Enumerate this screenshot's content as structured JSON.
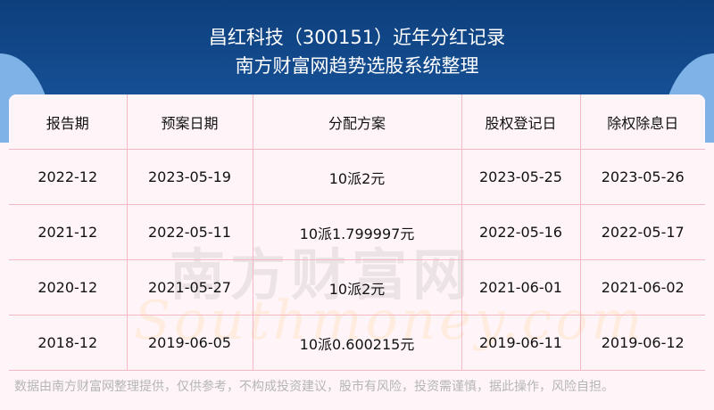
{
  "header": {
    "title": "昌红科技（300151）近年分红记录",
    "subtitle": "南方财富网趋势选股系统整理"
  },
  "table": {
    "columns": [
      "报告期",
      "预案日期",
      "分配方案",
      "股权登记日",
      "除权除息日"
    ],
    "rows": [
      [
        "2022-12",
        "2023-05-19",
        "10派2元",
        "2023-05-25",
        "2023-05-26"
      ],
      [
        "2021-12",
        "2022-05-11",
        "10派1.799997元",
        "2022-05-16",
        "2022-05-17"
      ],
      [
        "2020-12",
        "2021-05-27",
        "10派2元",
        "2021-06-01",
        "2021-06-02"
      ],
      [
        "2018-12",
        "2019-06-05",
        "10派0.600215元",
        "2019-06-11",
        "2019-06-12"
      ]
    ]
  },
  "watermark": {
    "cn": "南方财富网",
    "en": "Southmoney.com"
  },
  "footer": {
    "disclaimer": "数据由南方财富网整理提供，仅供参考，不构成投资建议，股市有风险，投资需谨慎，据此操作，风险自担。"
  },
  "colors": {
    "banner": "#154e92",
    "grid": "#f4b8c4",
    "background": "#fff5f9"
  }
}
